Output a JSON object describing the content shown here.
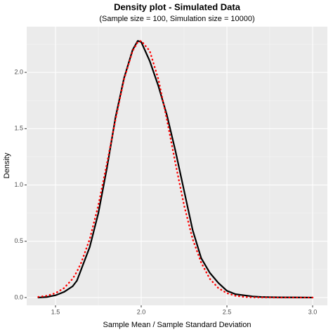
{
  "chart_data": {
    "type": "line",
    "title": "Density plot - Simulated Data",
    "subtitle": "(Sample size = 100, Simulation size = 10000)",
    "x_label": "Sample Mean / Sample Standard Deviation",
    "y_label": "Density",
    "x": [
      1.4,
      1.45,
      1.5,
      1.55,
      1.6,
      1.625,
      1.65,
      1.7,
      1.75,
      1.8,
      1.85,
      1.9,
      1.95,
      1.98,
      2.0,
      2.05,
      2.1,
      2.15,
      2.2,
      2.25,
      2.3,
      2.35,
      2.4,
      2.45,
      2.5,
      2.55,
      2.6,
      2.65,
      2.7,
      2.8,
      2.9,
      3.0
    ],
    "series": [
      {
        "color": "#000000",
        "linestyle": "solid",
        "values": [
          0.0,
          0.005,
          0.02,
          0.05,
          0.1,
          0.15,
          0.25,
          0.45,
          0.75,
          1.15,
          1.6,
          1.95,
          2.2,
          2.28,
          2.27,
          2.1,
          1.88,
          1.62,
          1.3,
          0.95,
          0.6,
          0.35,
          0.22,
          0.13,
          0.06,
          0.03,
          0.02,
          0.01,
          0.005,
          0.002,
          0.001,
          0.0
        ]
      },
      {
        "color": "#ff0000",
        "linestyle": "dotted",
        "values": [
          0.006,
          0.016,
          0.039,
          0.084,
          0.167,
          0.23,
          0.31,
          0.52,
          0.82,
          1.19,
          1.58,
          1.94,
          2.19,
          2.27,
          2.28,
          2.19,
          1.94,
          1.58,
          1.19,
          0.82,
          0.52,
          0.31,
          0.167,
          0.084,
          0.039,
          0.016,
          0.006,
          0.002,
          0.001,
          0.0,
          0.0,
          0.0
        ]
      }
    ],
    "xlim": [
      1.332,
      3.086
    ],
    "ylim": [
      -0.069,
      2.406
    ],
    "xticks": [
      1.5,
      {
        "value": 2,
        "label": "2.0"
      },
      2.5,
      {
        "value": 3,
        "label": "3.0"
      }
    ],
    "yticks": [
      {
        "value": 0,
        "label": "0.0"
      },
      0.5,
      {
        "value": 1,
        "label": "1.0"
      },
      1.5,
      {
        "value": 2,
        "label": "2.0"
      }
    ],
    "grid": true
  }
}
